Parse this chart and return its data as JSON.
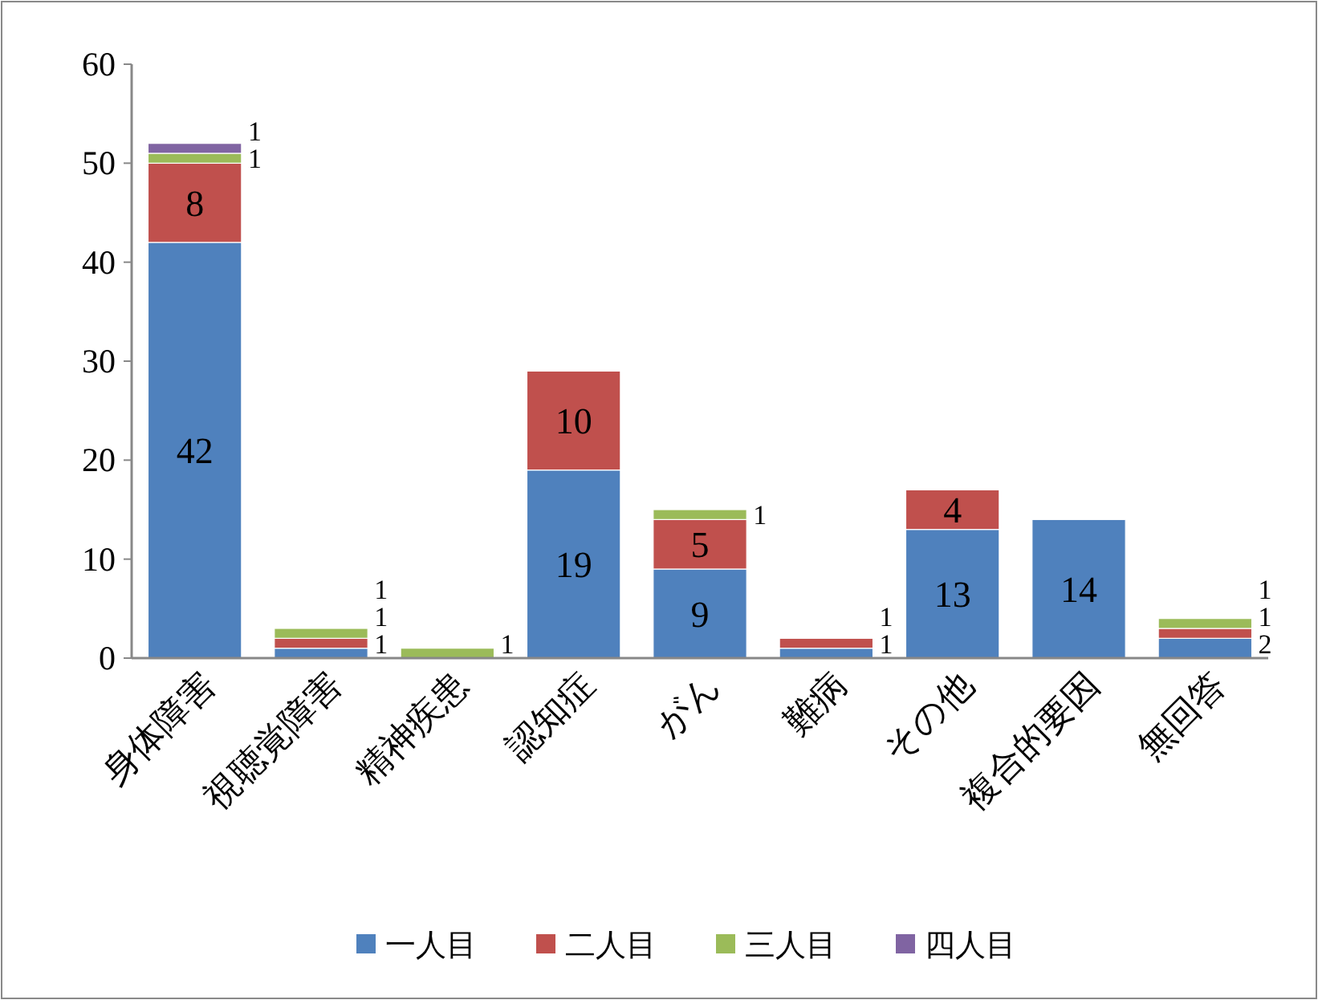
{
  "chart_data": {
    "type": "bar",
    "stacked": true,
    "categories": [
      "身体障害",
      "視聴覚障害",
      "精神疾患",
      "認知症",
      "がん",
      "難病",
      "その他",
      "複合的要因",
      "無回答"
    ],
    "series": [
      {
        "name": "一人目",
        "color": "#4f81bd",
        "values": [
          42,
          1,
          null,
          19,
          9,
          1,
          13,
          14,
          2
        ]
      },
      {
        "name": "二人目",
        "color": "#c0504d",
        "values": [
          8,
          1,
          null,
          10,
          5,
          1,
          4,
          null,
          1
        ]
      },
      {
        "name": "三人目",
        "color": "#9bbb59",
        "values": [
          1,
          1,
          1,
          null,
          1,
          null,
          null,
          null,
          1
        ]
      },
      {
        "name": "四人目",
        "color": "#8064a2",
        "values": [
          1,
          null,
          null,
          null,
          null,
          null,
          null,
          null,
          null
        ]
      }
    ],
    "ylim": [
      0,
      60
    ],
    "yticks": [
      0,
      10,
      20,
      30,
      40,
      50,
      60
    ],
    "grid": false,
    "legend": "bottom",
    "data_labels": true
  }
}
